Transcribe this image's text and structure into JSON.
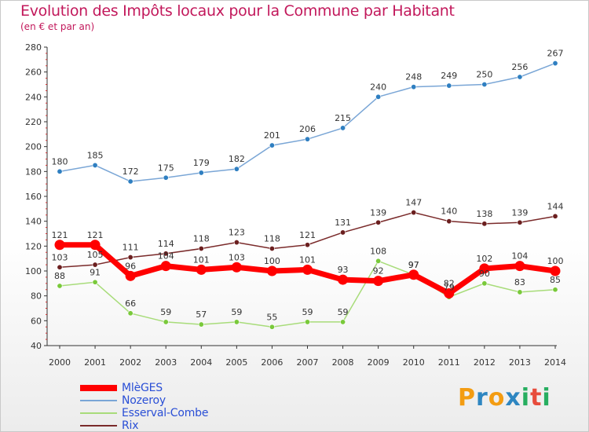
{
  "header": {
    "title": "Evolution des Impôts locaux pour la Commune par Habitant",
    "subtitle": "(en € et par an)"
  },
  "logo": {
    "text": "Proxiti",
    "colors": [
      "#f39c12",
      "#2e86c1",
      "#f39c12",
      "#2e86c1",
      "#27ae60",
      "#e74c3c",
      "#27ae60"
    ]
  },
  "chart_data": {
    "type": "line",
    "title": "Evolution des Impôts locaux pour la Commune par Habitant",
    "subtitle": "(en € et par an)",
    "x": [
      "2000",
      "2001",
      "2002",
      "2003",
      "2004",
      "2005",
      "2006",
      "2007",
      "2008",
      "2009",
      "2010",
      "2011",
      "2012",
      "2013",
      "2014"
    ],
    "ylim": [
      40,
      280
    ],
    "yticks": [
      40,
      60,
      80,
      100,
      120,
      140,
      160,
      180,
      200,
      220,
      240,
      260,
      280
    ],
    "grid": false,
    "legend_position": "bottom-left",
    "series": [
      {
        "name": "MlèGES",
        "color": "#ff0000",
        "emphasized": true,
        "values": [
          121,
          121,
          96,
          104,
          101,
          103,
          100,
          101,
          93,
          92,
          97,
          82,
          102,
          104,
          100
        ]
      },
      {
        "name": "Nozeroy",
        "color": "#7aa6d6",
        "marker_color": "#2f7fc1",
        "values": [
          180,
          185,
          172,
          175,
          179,
          182,
          201,
          206,
          215,
          240,
          248,
          249,
          250,
          256,
          267
        ]
      },
      {
        "name": "Esserval-Combe",
        "color": "#a8dc7a",
        "marker_color": "#79c93a",
        "values": [
          88,
          91,
          66,
          59,
          57,
          59,
          55,
          59,
          59,
          108,
          97,
          79,
          90,
          83,
          85
        ]
      },
      {
        "name": "Rix",
        "color": "#7a2a2a",
        "marker_color": "#6b1f1f",
        "values": [
          103,
          105,
          111,
          114,
          118,
          123,
          118,
          121,
          131,
          139,
          147,
          140,
          138,
          139,
          144
        ]
      }
    ]
  }
}
